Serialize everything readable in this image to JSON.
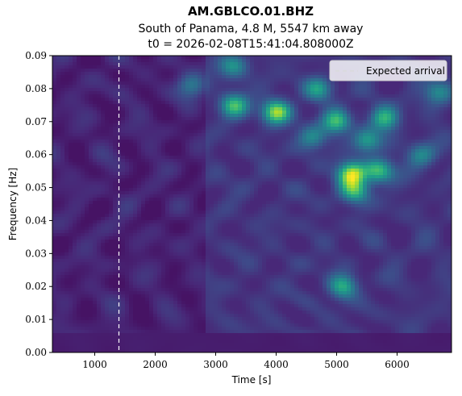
{
  "chart_data": {
    "type": "heatmap",
    "title": "AM.GBLCO.01.BHZ",
    "subtitle": "South of Panama, 4.8 M, 5547 km away",
    "subtitle2": "t0 = 2026-02-08T15:41:04.808000Z",
    "xlabel": "Time [s]",
    "ylabel": "Frequency [Hz]",
    "xlim": [
      300,
      6900
    ],
    "ylim": [
      0.0,
      0.09
    ],
    "xticks": [
      1000,
      2000,
      3000,
      4000,
      5000,
      6000
    ],
    "xtick_labels": [
      "1000",
      "2000",
      "3000",
      "4000",
      "5000",
      "6000"
    ],
    "yticks": [
      0.0,
      0.01,
      0.02,
      0.03,
      0.04,
      0.05,
      0.06,
      0.07,
      0.08,
      0.09
    ],
    "ytick_labels": [
      "0.00",
      "0.01",
      "0.02",
      "0.03",
      "0.04",
      "0.05",
      "0.06",
      "0.07",
      "0.08",
      "0.09"
    ],
    "colormap": "viridis",
    "grid": false,
    "expected_arrival": {
      "time": 1400,
      "label": "Expected arrival",
      "style": "dashed",
      "color": "#ffffff"
    },
    "legend": {
      "placement": "top-right",
      "entries": [
        "Expected arrival"
      ]
    },
    "hotspots": [
      {
        "t": 5250,
        "f": 0.054,
        "intensity": 1.0
      },
      {
        "t": 5700,
        "f": 0.055,
        "intensity": 0.8
      },
      {
        "t": 4000,
        "f": 0.073,
        "intensity": 0.95
      },
      {
        "t": 3300,
        "f": 0.075,
        "intensity": 0.7
      },
      {
        "t": 5000,
        "f": 0.07,
        "intensity": 0.7
      },
      {
        "t": 5800,
        "f": 0.071,
        "intensity": 0.65
      },
      {
        "t": 5300,
        "f": 0.049,
        "intensity": 0.7
      },
      {
        "t": 5100,
        "f": 0.02,
        "intensity": 0.6
      },
      {
        "t": 3300,
        "f": 0.087,
        "intensity": 0.5
      },
      {
        "t": 4700,
        "f": 0.08,
        "intensity": 0.5
      },
      {
        "t": 6700,
        "f": 0.079,
        "intensity": 0.5
      },
      {
        "t": 2600,
        "f": 0.081,
        "intensity": 0.45
      },
      {
        "t": 5500,
        "f": 0.064,
        "intensity": 0.55
      },
      {
        "t": 6400,
        "f": 0.06,
        "intensity": 0.45
      },
      {
        "t": 4600,
        "f": 0.065,
        "intensity": 0.45
      }
    ]
  }
}
